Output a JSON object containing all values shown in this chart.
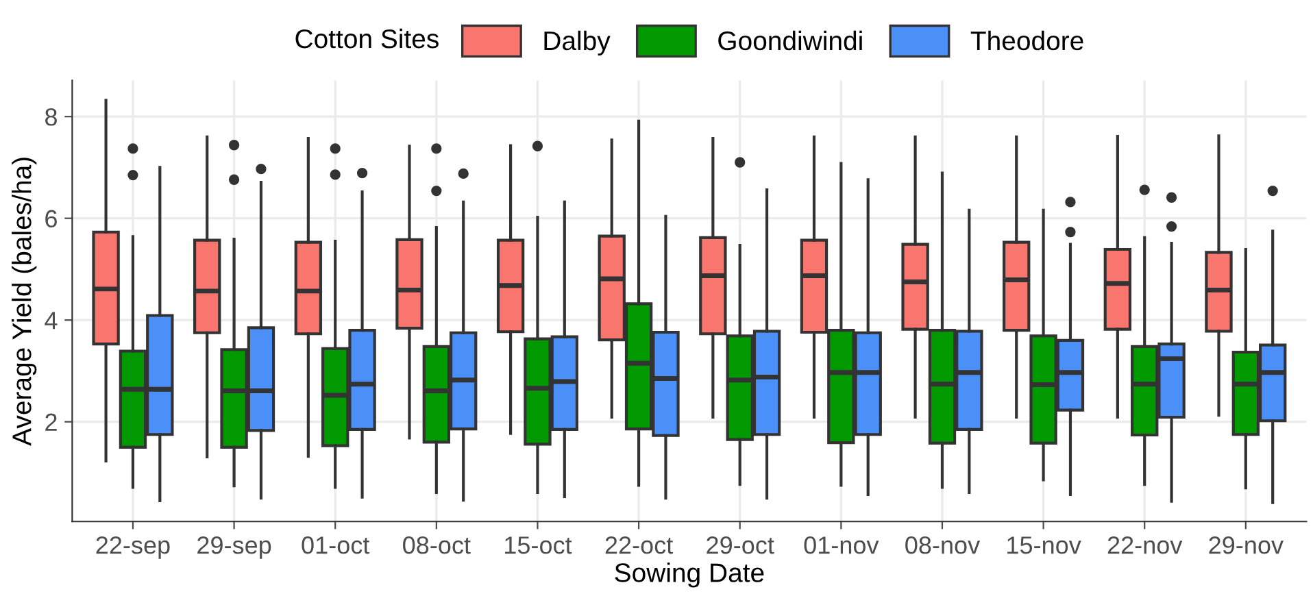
{
  "chart_data": {
    "type": "box",
    "xlabel": "Sowing Date",
    "ylabel": "Average Yield (bales/ha)",
    "legend_title": "Cotton Sites",
    "legend": "top",
    "grid": true,
    "categories": [
      "22-sep",
      "29-sep",
      "01-oct",
      "08-oct",
      "15-oct",
      "22-oct",
      "29-oct",
      "01-nov",
      "08-nov",
      "15-nov",
      "22-nov",
      "29-nov"
    ],
    "ylim": [
      0.04,
      8.71
    ],
    "yticks": [
      2,
      4,
      6,
      8
    ],
    "series": [
      {
        "name": "Dalby",
        "color": "#f8766d",
        "boxes": [
          {
            "low": 1.23,
            "q1": 3.53,
            "median": 4.61,
            "q3": 5.73,
            "high": 8.32
          },
          {
            "low": 1.31,
            "q1": 3.75,
            "median": 4.57,
            "q3": 5.57,
            "high": 7.6
          },
          {
            "low": 1.32,
            "q1": 3.73,
            "median": 4.57,
            "q3": 5.53,
            "high": 7.57
          },
          {
            "low": 1.68,
            "q1": 3.84,
            "median": 4.59,
            "q3": 5.58,
            "high": 7.42
          },
          {
            "low": 1.77,
            "q1": 3.77,
            "median": 4.68,
            "q3": 5.57,
            "high": 7.43
          },
          {
            "low": 2.09,
            "q1": 3.61,
            "median": 4.81,
            "q3": 5.65,
            "high": 7.54
          },
          {
            "low": 2.09,
            "q1": 3.73,
            "median": 4.87,
            "q3": 5.62,
            "high": 7.57
          },
          {
            "low": 2.09,
            "q1": 3.76,
            "median": 4.87,
            "q3": 5.57,
            "high": 7.6
          },
          {
            "low": 2.09,
            "q1": 3.82,
            "median": 4.75,
            "q3": 5.49,
            "high": 7.6
          },
          {
            "low": 2.09,
            "q1": 3.8,
            "median": 4.79,
            "q3": 5.53,
            "high": 7.6
          },
          {
            "low": 2.09,
            "q1": 3.82,
            "median": 4.72,
            "q3": 5.39,
            "high": 7.61
          },
          {
            "low": 2.13,
            "q1": 3.78,
            "median": 4.59,
            "q3": 5.33,
            "high": 7.62
          }
        ]
      },
      {
        "name": "Goondiwindi",
        "color": "#009a00",
        "boxes": [
          {
            "low": 0.71,
            "q1": 1.5,
            "median": 2.64,
            "q3": 3.39,
            "high": 5.64,
            "outliers": [
              7.37,
              6.85
            ]
          },
          {
            "low": 0.74,
            "q1": 1.5,
            "median": 2.61,
            "q3": 3.42,
            "high": 5.59,
            "outliers": [
              7.44,
              6.76
            ]
          },
          {
            "low": 0.71,
            "q1": 1.53,
            "median": 2.52,
            "q3": 3.44,
            "high": 5.55,
            "outliers": [
              7.37,
              6.86
            ]
          },
          {
            "low": 0.61,
            "q1": 1.6,
            "median": 2.61,
            "q3": 3.48,
            "high": 5.82,
            "outliers": [
              7.37,
              6.54
            ]
          },
          {
            "low": 0.61,
            "q1": 1.56,
            "median": 2.66,
            "q3": 3.63,
            "high": 6.02,
            "outliers": [
              7.42
            ]
          },
          {
            "low": 0.75,
            "q1": 1.86,
            "median": 3.15,
            "q3": 4.32,
            "high": 7.91
          },
          {
            "low": 0.77,
            "q1": 1.65,
            "median": 2.82,
            "q3": 3.69,
            "high": 5.47,
            "outliers": [
              7.1
            ]
          },
          {
            "low": 0.75,
            "q1": 1.59,
            "median": 2.97,
            "q3": 3.8,
            "high": 7.08
          },
          {
            "low": 0.71,
            "q1": 1.58,
            "median": 2.74,
            "q3": 3.8,
            "high": 6.89
          },
          {
            "low": 0.86,
            "q1": 1.58,
            "median": 2.73,
            "q3": 3.69,
            "high": 6.16
          },
          {
            "low": 0.77,
            "q1": 1.74,
            "median": 2.74,
            "q3": 3.48,
            "high": 5.62,
            "outliers": [
              6.56
            ]
          },
          {
            "low": 0.7,
            "q1": 1.75,
            "median": 2.74,
            "q3": 3.37,
            "high": 5.39
          }
        ]
      },
      {
        "name": "Theodore",
        "color": "#4a90f8",
        "boxes": [
          {
            "low": 0.45,
            "q1": 1.75,
            "median": 2.64,
            "q3": 4.09,
            "high": 7.0
          },
          {
            "low": 0.5,
            "q1": 1.83,
            "median": 2.61,
            "q3": 3.85,
            "high": 6.71,
            "outliers": [
              6.97
            ]
          },
          {
            "low": 0.52,
            "q1": 1.85,
            "median": 2.74,
            "q3": 3.8,
            "high": 6.52,
            "outliers": [
              6.89
            ]
          },
          {
            "low": 0.46,
            "q1": 1.86,
            "median": 2.82,
            "q3": 3.75,
            "high": 6.32,
            "outliers": [
              6.88
            ]
          },
          {
            "low": 0.53,
            "q1": 1.85,
            "median": 2.79,
            "q3": 3.67,
            "high": 6.32
          },
          {
            "low": 0.5,
            "q1": 1.73,
            "median": 2.85,
            "q3": 3.76,
            "high": 6.04
          },
          {
            "low": 0.5,
            "q1": 1.75,
            "median": 2.88,
            "q3": 3.78,
            "high": 6.56
          },
          {
            "low": 0.57,
            "q1": 1.75,
            "median": 2.97,
            "q3": 3.75,
            "high": 6.76
          },
          {
            "low": 0.61,
            "q1": 1.85,
            "median": 2.97,
            "q3": 3.78,
            "high": 6.16
          },
          {
            "low": 0.57,
            "q1": 2.23,
            "median": 2.97,
            "q3": 3.6,
            "high": 5.49,
            "outliers": [
              6.32,
              5.73
            ]
          },
          {
            "low": 0.44,
            "q1": 2.09,
            "median": 3.24,
            "q3": 3.53,
            "high": 5.51,
            "outliers": [
              6.41,
              5.84
            ]
          },
          {
            "low": 0.41,
            "q1": 2.02,
            "median": 2.97,
            "q3": 3.51,
            "high": 5.75,
            "outliers": [
              6.54
            ]
          }
        ]
      }
    ]
  }
}
